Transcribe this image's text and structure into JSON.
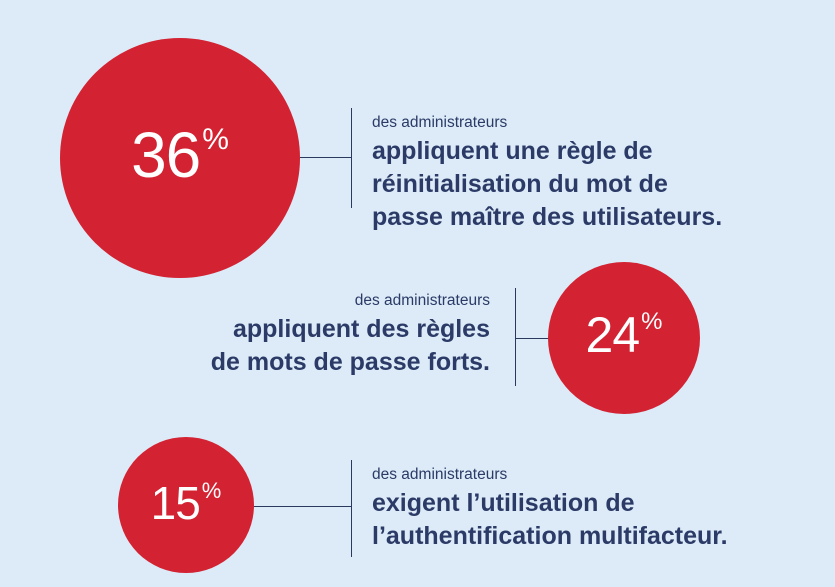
{
  "chart_data": {
    "type": "bubble",
    "unit": "%",
    "items": [
      {
        "value": 36,
        "label_small": "des administrateurs",
        "label_lines": [
          "appliquent une règle de",
          "réinitialisation du mot de",
          "passe maître des utilisateurs."
        ]
      },
      {
        "value": 24,
        "label_small": "des administrateurs",
        "label_lines": [
          "appliquent des règles",
          "de mots de passe forts."
        ]
      },
      {
        "value": 15,
        "label_small": "des administrateurs",
        "label_lines": [
          "exigent l’utilisation de",
          "l’authentification multifacteur."
        ]
      }
    ]
  },
  "colors": {
    "background": "#dcebf7",
    "circle": "#d32232",
    "text": "#2b3a66"
  }
}
